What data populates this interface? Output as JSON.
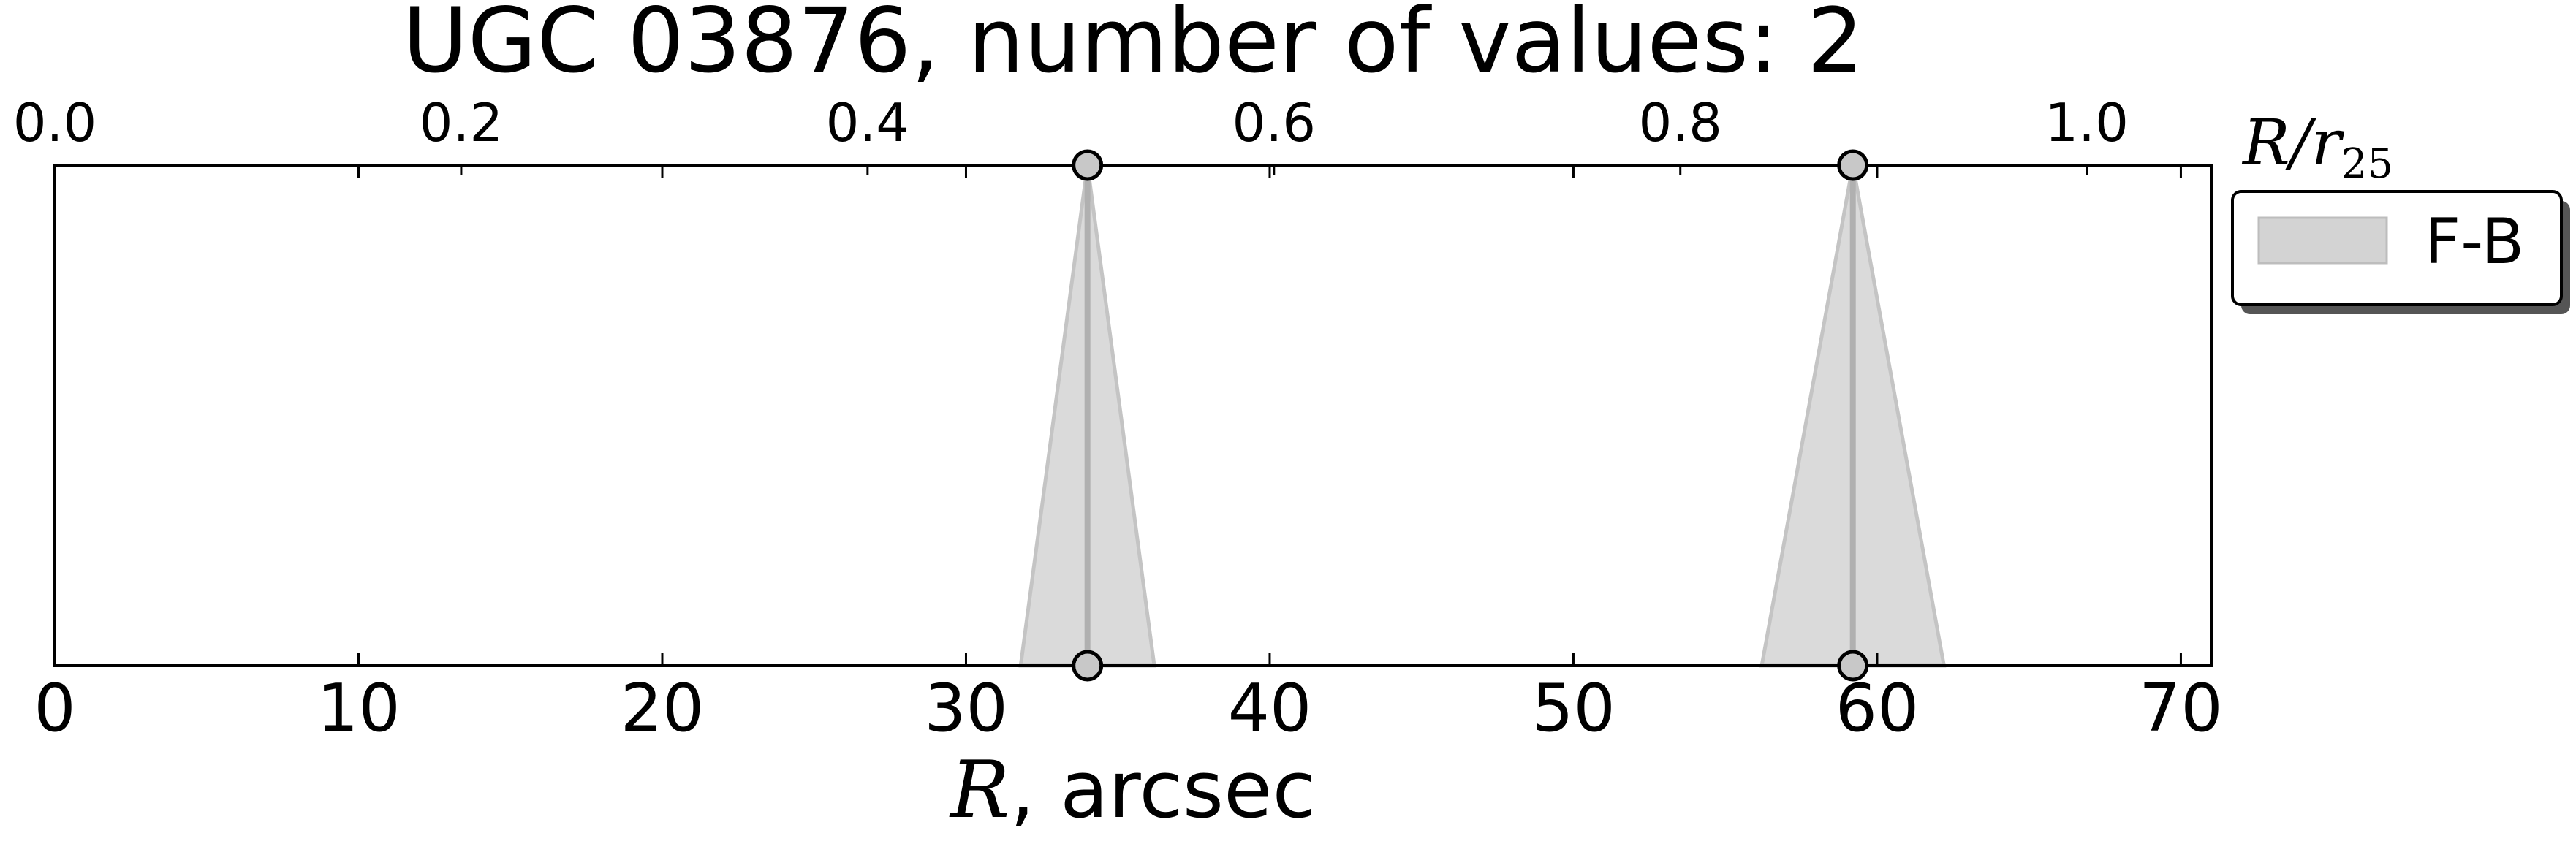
{
  "chart_data": {
    "type": "area",
    "title": "UGC 03876, number of values: 2",
    "xlabel_main": "R",
    "xlabel_suffix": ", arcsec",
    "top_axis_label_main": "R/r",
    "top_axis_label_sub": "25",
    "xlim": [
      0,
      71
    ],
    "bottom_ticks": [
      0,
      10,
      20,
      30,
      40,
      50,
      60,
      70
    ],
    "top_ticks": [
      "0.0",
      "0.2",
      "0.4",
      "0.6",
      "0.8",
      "1.0"
    ],
    "top_to_bottom_scale": 66.9,
    "grid": false,
    "legend": {
      "position": "right-outside-top",
      "entries": [
        {
          "label": "F-B",
          "color": "#d3d3d3"
        }
      ]
    },
    "series": [
      {
        "name": "F-B",
        "color": "#d3d3d3",
        "points": [
          {
            "x": 34.0,
            "err_low": 31.8,
            "err_high": 36.2
          },
          {
            "x": 59.2,
            "err_low": 56.2,
            "err_high": 62.2
          }
        ]
      }
    ]
  }
}
